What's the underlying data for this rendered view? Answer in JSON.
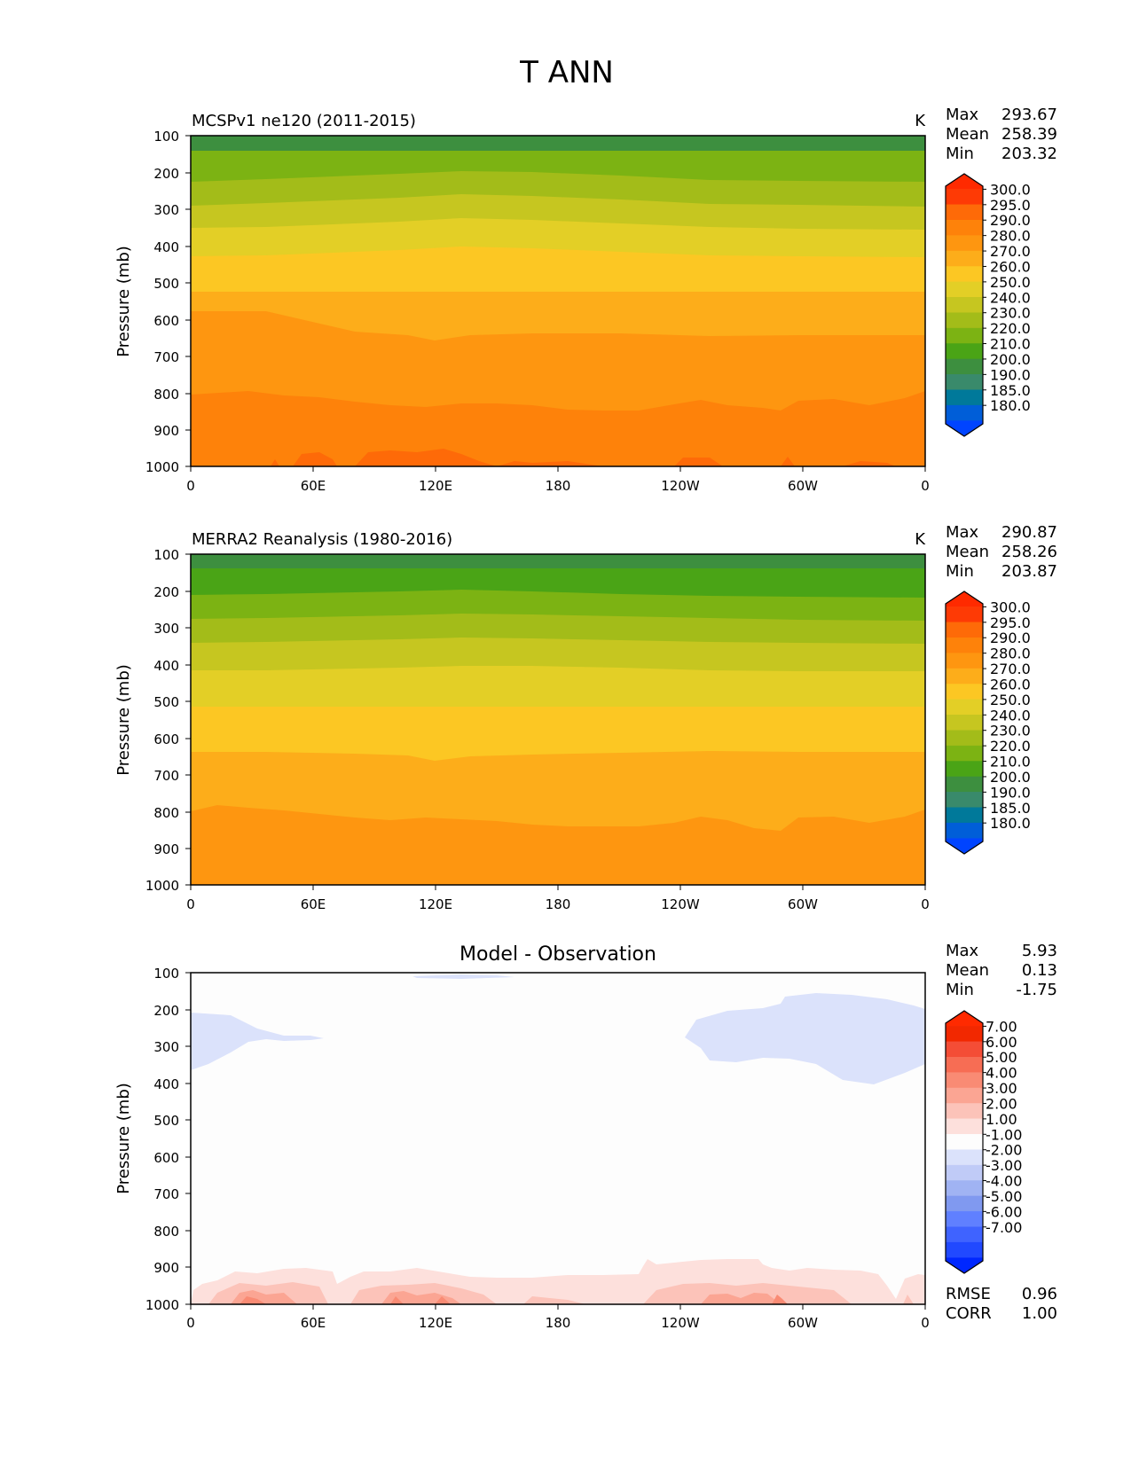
{
  "figure": {
    "title": "T ANN"
  },
  "colors": {
    "abs_levels": [
      "#0044ff",
      "#005ed8",
      "#00799a",
      "#398a6b",
      "#3d8f3f",
      "#4aa416",
      "#7cb313",
      "#a3bc19",
      "#c6c620",
      "#e3cf26",
      "#fcc723",
      "#fdad1a",
      "#fe9610",
      "#fe820a",
      "#fe6a08",
      "#fe3a05",
      "#ff2a00"
    ],
    "diff_levels": [
      "#0027ff",
      "#2149ff",
      "#3f63ff",
      "#6080ff",
      "#8099f0",
      "#a0b3f3",
      "#c0cbf7",
      "#dbe2fb",
      "#fdfdfd",
      "#fde0dc",
      "#fcc3b9",
      "#fba593",
      "#f98b74",
      "#f76d54",
      "#f44d36",
      "#f22800",
      "#ff2a00"
    ]
  },
  "chart_data": [
    {
      "type": "heatmap",
      "title": "MCSPv1 ne120 (2011-2015)",
      "units": "K",
      "ylabel": "Pressure (mb)",
      "xlabel": "",
      "x_ticks": [
        "0",
        "60E",
        "120E",
        "180",
        "120W",
        "60W",
        "0"
      ],
      "y_ticks": [
        "100",
        "200",
        "300",
        "400",
        "500",
        "600",
        "700",
        "800",
        "900",
        "1000"
      ],
      "ylim": [
        1000,
        100
      ],
      "stats": {
        "Max": "293.67",
        "Mean": "258.39",
        "Min": "203.32"
      },
      "stats_labels": [
        "Max",
        "Mean",
        "Min"
      ],
      "colorbar_labels": [
        "300.0",
        "295.0",
        "290.0",
        "280.0",
        "270.0",
        "260.0",
        "250.0",
        "240.0",
        "230.0",
        "220.0",
        "210.0",
        "200.0",
        "190.0",
        "185.0",
        "180.0"
      ],
      "levels_k": [
        180,
        185,
        190,
        200,
        210,
        220,
        230,
        240,
        250,
        260,
        270,
        280,
        290,
        295,
        300
      ],
      "bands_p_bottom_mb": [
        {
          "range": "210-220",
          "p_mb": 140
        },
        {
          "range": "220-230",
          "p_mb": 220
        },
        {
          "range": "230-240",
          "p_mb": 290
        },
        {
          "range": "240-250",
          "p_mb": 360
        },
        {
          "range": "250-260",
          "p_mb": 430
        },
        {
          "range": "260-270",
          "p_mb": 520
        },
        {
          "range": "270-280",
          "p_mb": 640
        },
        {
          "range": "280-290",
          "p_mb": 810
        },
        {
          "range": "290-295",
          "p_mb": 1000
        }
      ]
    },
    {
      "type": "heatmap",
      "title": "MERRA2 Reanalysis (1980-2016)",
      "units": "K",
      "ylabel": "Pressure (mb)",
      "xlabel": "",
      "x_ticks": [
        "0",
        "60E",
        "120E",
        "180",
        "120W",
        "60W",
        "0"
      ],
      "y_ticks": [
        "100",
        "200",
        "300",
        "400",
        "500",
        "600",
        "700",
        "800",
        "900",
        "1000"
      ],
      "ylim": [
        1000,
        100
      ],
      "stats": {
        "Max": "290.87",
        "Mean": "258.26",
        "Min": "203.87"
      },
      "stats_labels": [
        "Max",
        "Mean",
        "Min"
      ],
      "colorbar_labels": [
        "300.0",
        "295.0",
        "290.0",
        "280.0",
        "270.0",
        "260.0",
        "250.0",
        "240.0",
        "230.0",
        "220.0",
        "210.0",
        "200.0",
        "190.0",
        "185.0",
        "180.0"
      ],
      "levels_k": [
        180,
        185,
        190,
        200,
        210,
        220,
        230,
        240,
        250,
        260,
        270,
        280,
        290,
        295,
        300
      ],
      "bands_p_bottom_mb": [
        {
          "range": "210-220",
          "p_mb": 140
        },
        {
          "range": "220-230",
          "p_mb": 220
        },
        {
          "range": "230-240",
          "p_mb": 290
        },
        {
          "range": "240-250",
          "p_mb": 360
        },
        {
          "range": "250-260",
          "p_mb": 430
        },
        {
          "range": "260-270",
          "p_mb": 520
        },
        {
          "range": "270-280",
          "p_mb": 640
        },
        {
          "range": "280-290",
          "p_mb": 810
        },
        {
          "range": "290-295",
          "p_mb": 1000
        }
      ]
    },
    {
      "type": "heatmap",
      "title": "Model - Observation",
      "units": "",
      "ylabel": "Pressure (mb)",
      "xlabel": "",
      "x_ticks": [
        "0",
        "60E",
        "120E",
        "180",
        "120W",
        "60W",
        "0"
      ],
      "y_ticks": [
        "100",
        "200",
        "300",
        "400",
        "500",
        "600",
        "700",
        "800",
        "900",
        "1000"
      ],
      "ylim": [
        1000,
        100
      ],
      "stats": {
        "Max": "5.93",
        "Mean": "0.13",
        "Min": "-1.75"
      },
      "stats_labels": [
        "Max",
        "Mean",
        "Min"
      ],
      "metrics": {
        "RMSE": "0.96",
        "CORR": "1.00"
      },
      "metrics_labels": [
        "RMSE",
        "CORR"
      ],
      "colorbar_labels": [
        "7.00",
        "6.00",
        "5.00",
        "4.00",
        "3.00",
        "2.00",
        "1.00",
        "-1.00",
        "-2.00",
        "-3.00",
        "-4.00",
        "-5.00",
        "-6.00",
        "-7.00"
      ],
      "levels": [
        -7,
        -6,
        -5,
        -4,
        -3,
        -2,
        -1,
        1,
        2,
        3,
        4,
        5,
        6,
        7
      ]
    }
  ]
}
